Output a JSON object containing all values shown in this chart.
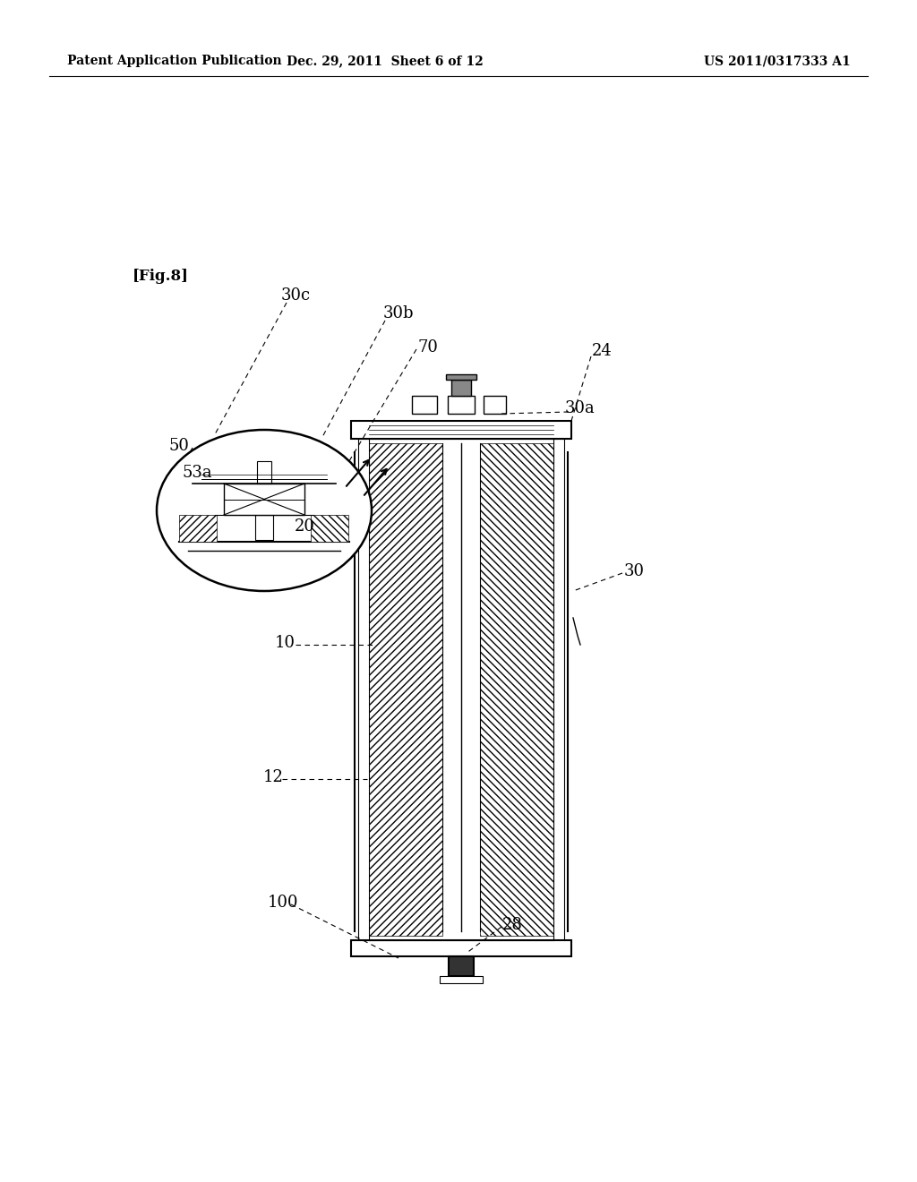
{
  "bg_color": "#ffffff",
  "header_left": "Patent Application Publication",
  "header_mid": "Dec. 29, 2011  Sheet 6 of 12",
  "header_right": "US 2011/0317333 A1",
  "fig_label": "[Fig.8]"
}
